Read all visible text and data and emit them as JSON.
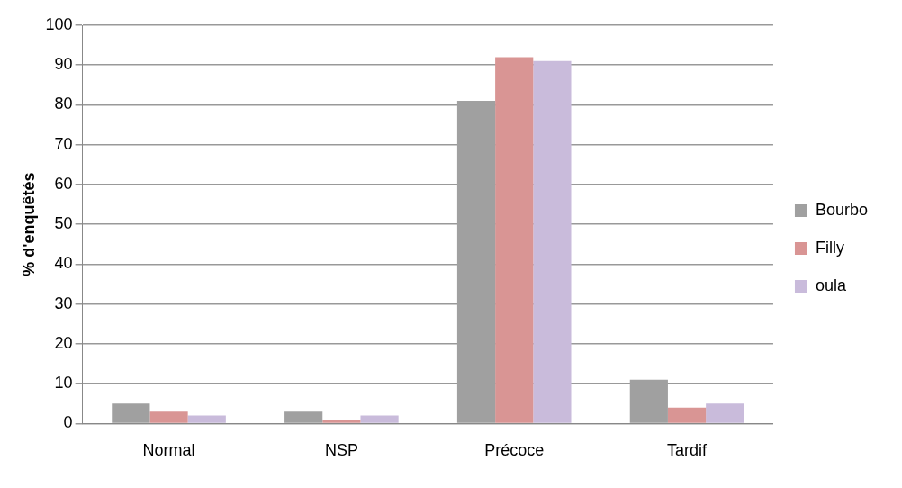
{
  "chart_data": {
    "type": "bar",
    "ylabel": "% d'enquêtés",
    "categories": [
      "Normal",
      "NSP",
      "Précoce",
      "Tardif"
    ],
    "series": [
      {
        "name": "Bourbo",
        "color": "#a0a0a0",
        "values": [
          5,
          3,
          81,
          11
        ]
      },
      {
        "name": "Filly",
        "color": "#d99594",
        "values": [
          3,
          1,
          92,
          4
        ]
      },
      {
        "name": "oula",
        "color": "#c9bbdb",
        "values": [
          2,
          2,
          91,
          5
        ]
      }
    ],
    "ylim": [
      0,
      100
    ],
    "yticks": [
      0,
      10,
      20,
      30,
      40,
      50,
      60,
      70,
      80,
      90,
      100
    ],
    "grid": "y",
    "legend": "right"
  }
}
